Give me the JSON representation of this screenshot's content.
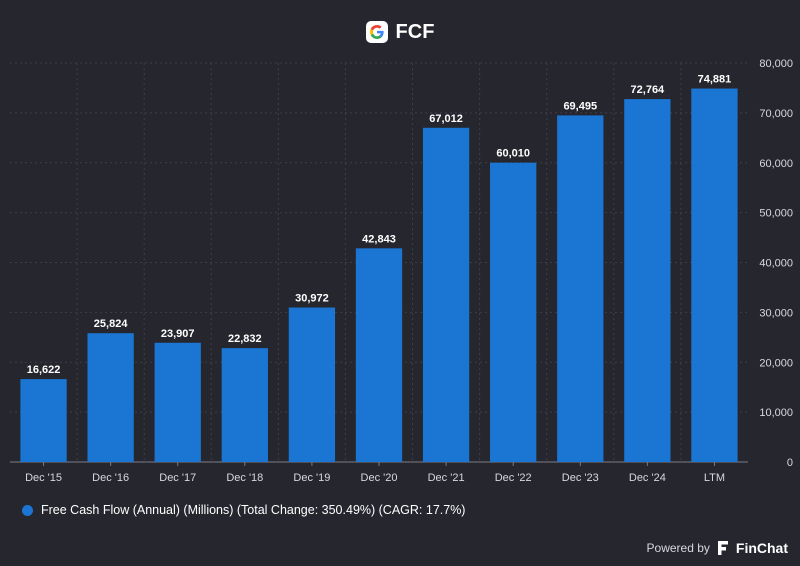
{
  "header": {
    "title": "FCF",
    "logo_icon": "google-g-logo"
  },
  "legend": {
    "label": "Free Cash Flow (Annual) (Millions) (Total Change: 350.49%) (CAGR: 17.7%)"
  },
  "footer": {
    "powered_by": "Powered by",
    "brand": "FinChat",
    "brand_icon": "finchat-logo"
  },
  "colors": {
    "background": "#25262e",
    "bar": "#1b76d3",
    "grid": "#3d3f48"
  },
  "chart_data": {
    "type": "bar",
    "title": "FCF",
    "categories": [
      "Dec '15",
      "Dec '16",
      "Dec '17",
      "Dec '18",
      "Dec '19",
      "Dec '20",
      "Dec '21",
      "Dec '22",
      "Dec '23",
      "Dec '24",
      "LTM"
    ],
    "values": [
      16622,
      25824,
      23907,
      22832,
      30972,
      42843,
      67012,
      60010,
      69495,
      72764,
      74881
    ],
    "value_labels": [
      "16,622",
      "25,824",
      "23,907",
      "22,832",
      "30,972",
      "42,843",
      "67,012",
      "60,010",
      "69,495",
      "72,764",
      "74,881"
    ],
    "y_ticks": [
      0,
      10000,
      20000,
      30000,
      40000,
      50000,
      60000,
      70000,
      80000
    ],
    "y_tick_labels": [
      "0",
      "10,000",
      "20,000",
      "30,000",
      "40,000",
      "50,000",
      "60,000",
      "70,000",
      "80,000"
    ],
    "ylim": [
      0,
      80000
    ],
    "y_axis_side": "right",
    "grid": true,
    "legend_position": "bottom-left",
    "series_name": "Free Cash Flow (Annual) (Millions) (Total Change: 350.49%) (CAGR: 17.7%)"
  }
}
